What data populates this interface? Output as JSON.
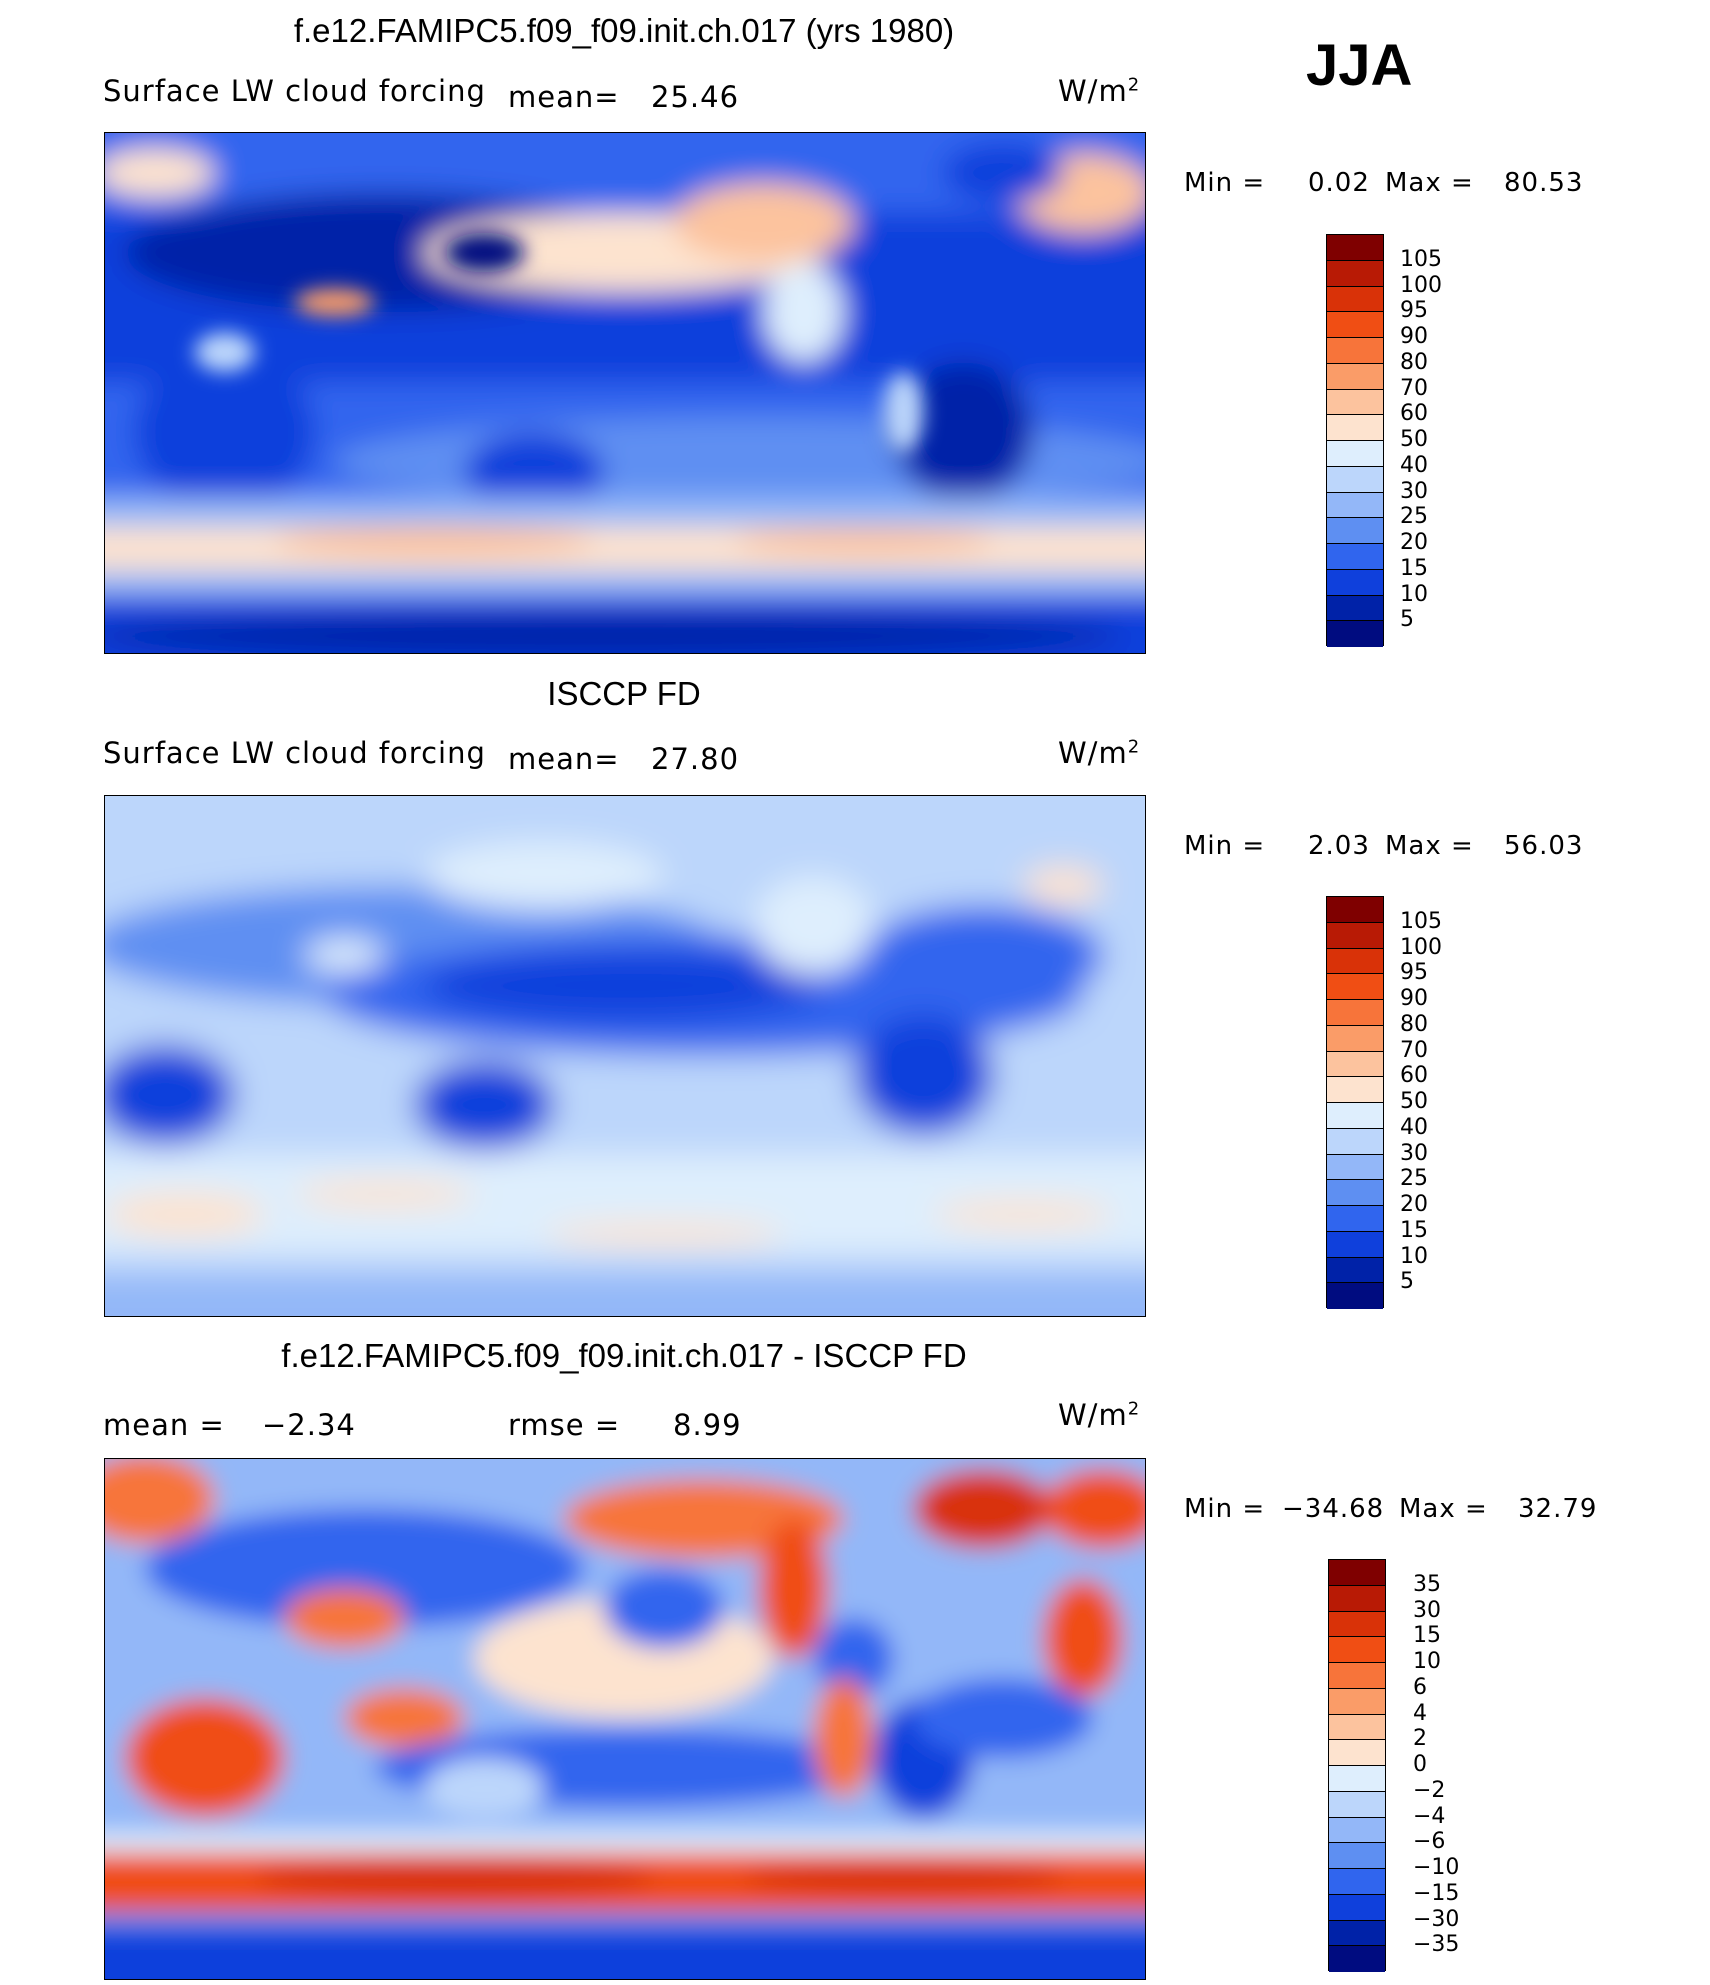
{
  "season": "JJA",
  "chart_data": [
    {
      "type": "heatmap",
      "panel": "model",
      "title": "f.e12.FAMIPC5.f09_f09.init.ch.017 (yrs 1980)",
      "variable": "Surface LW cloud forcing",
      "mean_label": "mean=",
      "mean_value": "25.46",
      "units_text": "W/m",
      "units_sup": "2",
      "min_label": "Min =",
      "min_value": "0.02",
      "max_label": "Max =",
      "max_value": "80.53",
      "colorbar_ticks": [
        "105",
        "100",
        "95",
        "90",
        "80",
        "70",
        "60",
        "50",
        "40",
        "30",
        "25",
        "20",
        "15",
        "10",
        "5"
      ],
      "colorbar_colors": [
        "#7f0000",
        "#b81a05",
        "#d93208",
        "#f04e14",
        "#f7743a",
        "#fa9c68",
        "#fcc39e",
        "#fde3cf",
        "#deeefd",
        "#bcd6fb",
        "#93b7f8",
        "#5e8ff2",
        "#3065ee",
        "#0f40dc",
        "#0022a8",
        "#000c80"
      ],
      "x_range": [
        0,
        360
      ],
      "y_range": [
        -90,
        90
      ]
    },
    {
      "type": "heatmap",
      "panel": "observations",
      "title": "ISCCP FD",
      "variable": "Surface LW cloud forcing",
      "mean_label": "mean=",
      "mean_value": "27.80",
      "units_text": "W/m",
      "units_sup": "2",
      "min_label": "Min =",
      "min_value": "2.03",
      "max_label": "Max =",
      "max_value": "56.03",
      "colorbar_ticks": [
        "105",
        "100",
        "95",
        "90",
        "80",
        "70",
        "60",
        "50",
        "40",
        "30",
        "25",
        "20",
        "15",
        "10",
        "5"
      ],
      "colorbar_colors": [
        "#7f0000",
        "#b81a05",
        "#d93208",
        "#f04e14",
        "#f7743a",
        "#fa9c68",
        "#fcc39e",
        "#fde3cf",
        "#deeefd",
        "#bcd6fb",
        "#93b7f8",
        "#5e8ff2",
        "#3065ee",
        "#0f40dc",
        "#0022a8",
        "#000c80"
      ],
      "x_range": [
        0,
        360
      ],
      "y_range": [
        -90,
        90
      ]
    },
    {
      "type": "heatmap",
      "panel": "difference",
      "title": "f.e12.FAMIPC5.f09_f09.init.ch.017 - ISCCP FD",
      "mean_label": "mean =",
      "mean_value": "−2.34",
      "rmse_label": "rmse =",
      "rmse_value": "8.99",
      "units_text": "W/m",
      "units_sup": "2",
      "min_label": "Min =",
      "min_value": "−34.68",
      "max_label": "Max =",
      "max_value": "32.79",
      "colorbar_ticks": [
        "35",
        "30",
        "15",
        "10",
        "6",
        "4",
        "2",
        "0",
        "−2",
        "−4",
        "−6",
        "−10",
        "−15",
        "−30",
        "−35"
      ],
      "colorbar_colors": [
        "#7f0000",
        "#b81a05",
        "#d93208",
        "#f04e14",
        "#f7743a",
        "#fa9c68",
        "#fcc39e",
        "#fde3cf",
        "#deeefd",
        "#bcd6fb",
        "#93b7f8",
        "#5e8ff2",
        "#3065ee",
        "#0f40dc",
        "#0022a8",
        "#000c80"
      ],
      "x_range": [
        0,
        360
      ],
      "y_range": [
        -90,
        90
      ]
    }
  ]
}
